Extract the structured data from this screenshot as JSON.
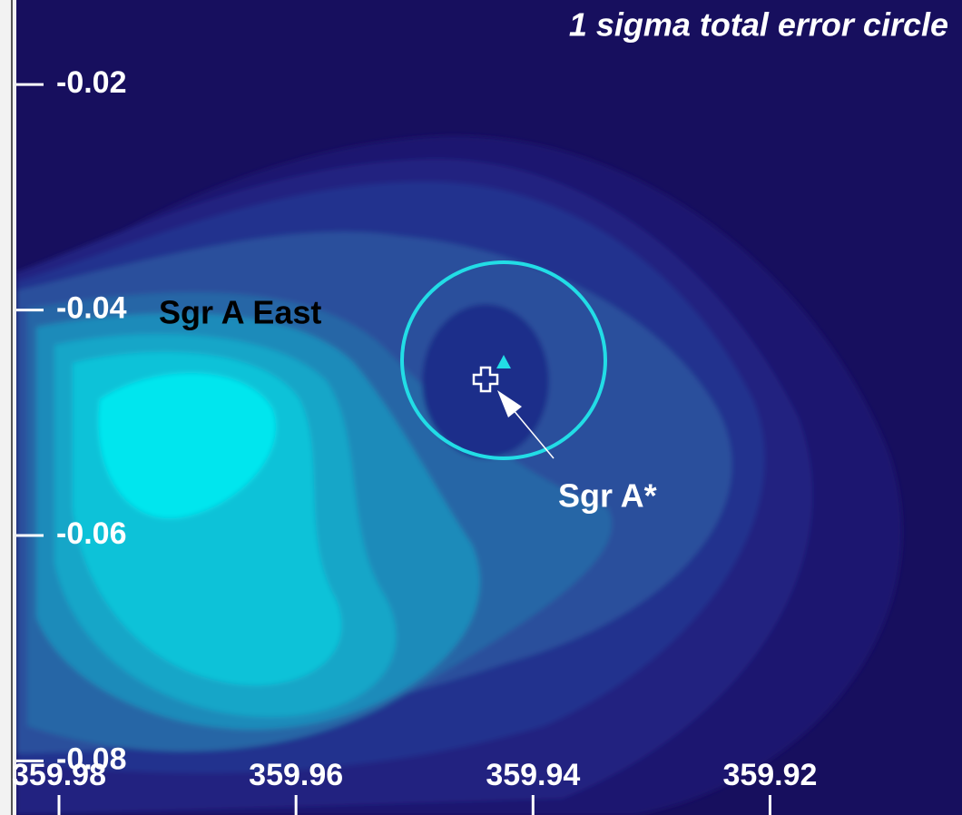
{
  "chart_data": {
    "type": "skymap",
    "title": "1 sigma total error circle",
    "xlim": [
      359.9836,
      359.9038
    ],
    "xticks": [
      359.98,
      359.96,
      359.94,
      359.92
    ],
    "ylim": [
      -0.0848,
      -0.0125
    ],
    "yticks": [
      -0.02,
      -0.04,
      -0.06,
      -0.08
    ],
    "annotations": [
      "Sgr A East",
      "Sgr A*"
    ]
  }
}
